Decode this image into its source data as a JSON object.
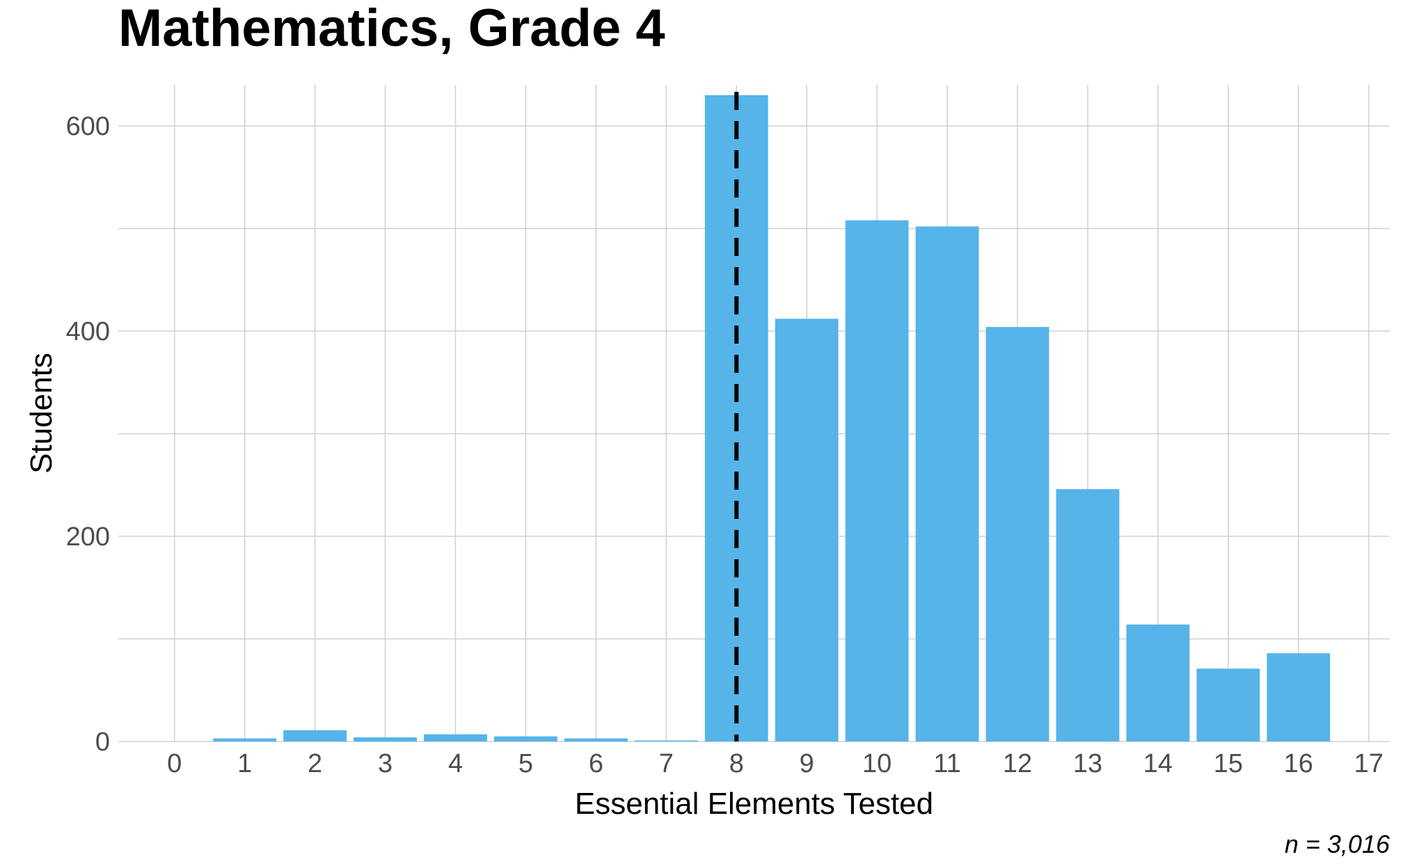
{
  "chart_data": {
    "type": "bar",
    "title": "Mathematics, Grade 4",
    "xlabel": "Essential Elements Tested",
    "ylabel": "Students",
    "caption": "n = 3,016",
    "x_ticks": [
      "0",
      "1",
      "2",
      "3",
      "4",
      "5",
      "6",
      "7",
      "8",
      "9",
      "10",
      "11",
      "12",
      "13",
      "14",
      "15",
      "16",
      "17"
    ],
    "y_ticks": [
      "0",
      "200",
      "400",
      "600"
    ],
    "xlim": [
      -0.8,
      17.3
    ],
    "ylim": [
      0,
      640
    ],
    "categories": [
      "1",
      "2",
      "3",
      "4",
      "5",
      "6",
      "7",
      "8",
      "9",
      "10",
      "11",
      "12",
      "13",
      "14",
      "15",
      "16"
    ],
    "values": [
      3,
      11,
      4,
      7,
      5,
      3,
      1,
      630,
      412,
      508,
      502,
      404,
      246,
      114,
      71,
      86
    ],
    "reference_line": {
      "x": 8,
      "style": "dashed",
      "color": "#000000"
    },
    "bar_color": "#56b4e9",
    "grid": true,
    "legend": "none"
  }
}
